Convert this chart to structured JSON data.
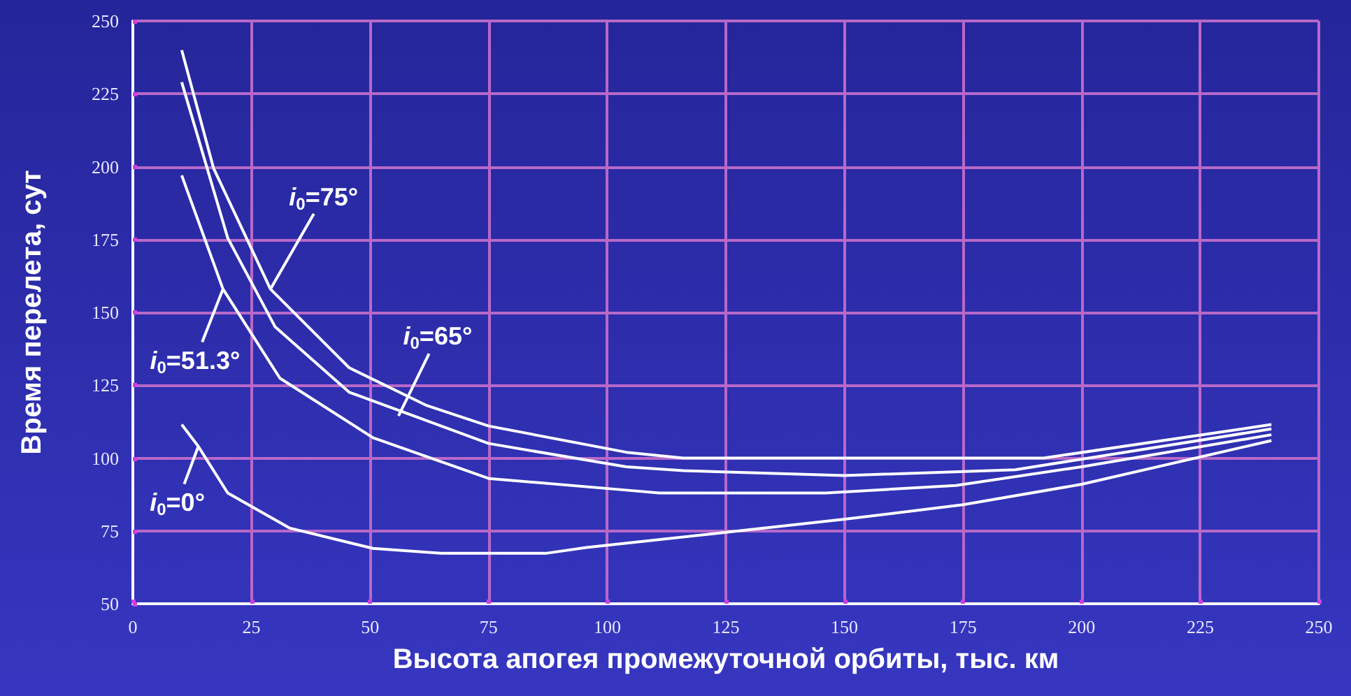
{
  "chart_data": {
    "type": "line",
    "xlabel": "Высота апогея промежуточной орбиты, тыс. км",
    "ylabel": "Время перелета, сут",
    "xlim": [
      0,
      250
    ],
    "xticks": [
      0,
      25,
      50,
      75,
      100,
      125,
      150,
      175,
      200,
      225,
      250
    ],
    "ylim": [
      50,
      250
    ],
    "yticks": [
      50,
      75,
      100,
      125,
      150,
      175,
      200,
      225,
      250
    ],
    "grid": true,
    "marker": "none",
    "line_style": "solid",
    "series": [
      {
        "color": "#ffffff",
        "x": [
          10.3,
          17,
          29,
          45.6,
          62,
          75,
          104,
          116,
          150,
          192,
          240
        ],
        "values": [
          240,
          199.5,
          158,
          131,
          118,
          111,
          102,
          100,
          100,
          100,
          111.5
        ]
      },
      {
        "color": "#ffffff",
        "x": [
          10.3,
          20,
          30,
          45.6,
          75,
          104,
          116,
          150,
          186,
          240
        ],
        "values": [
          229,
          175.5,
          145,
          122.6,
          105,
          97,
          95.7,
          94,
          96,
          110
        ]
      },
      {
        "color": "#ffffff",
        "x": [
          10.3,
          19,
          31,
          50.6,
          75,
          104,
          111,
          146,
          173.5,
          200,
          240
        ],
        "values": [
          197,
          158,
          127.4,
          107,
          93,
          89,
          88,
          88,
          90.6,
          97,
          108
        ]
      },
      {
        "color": "#ffffff",
        "x": [
          10.3,
          13.8,
          20,
          33,
          50.6,
          65,
          87,
          95.6,
          125,
          150,
          175,
          200,
          240
        ],
        "values": [
          111.5,
          104,
          88,
          76,
          69,
          67.3,
          67.3,
          69.3,
          74.5,
          79,
          84,
          91,
          106
        ]
      }
    ],
    "annotations": [
      {
        "text": "i$_{0}$=75°",
        "x": 29,
        "y": 158
      },
      {
        "text": "i$_{0}$=65°",
        "x": 56,
        "y": 114.5
      },
      {
        "text": "i$_{0}$=51.3°",
        "x": 19,
        "y": 158
      },
      {
        "text": "i$_{0}$=0°",
        "x": 13.8,
        "y": 104
      }
    ]
  }
}
